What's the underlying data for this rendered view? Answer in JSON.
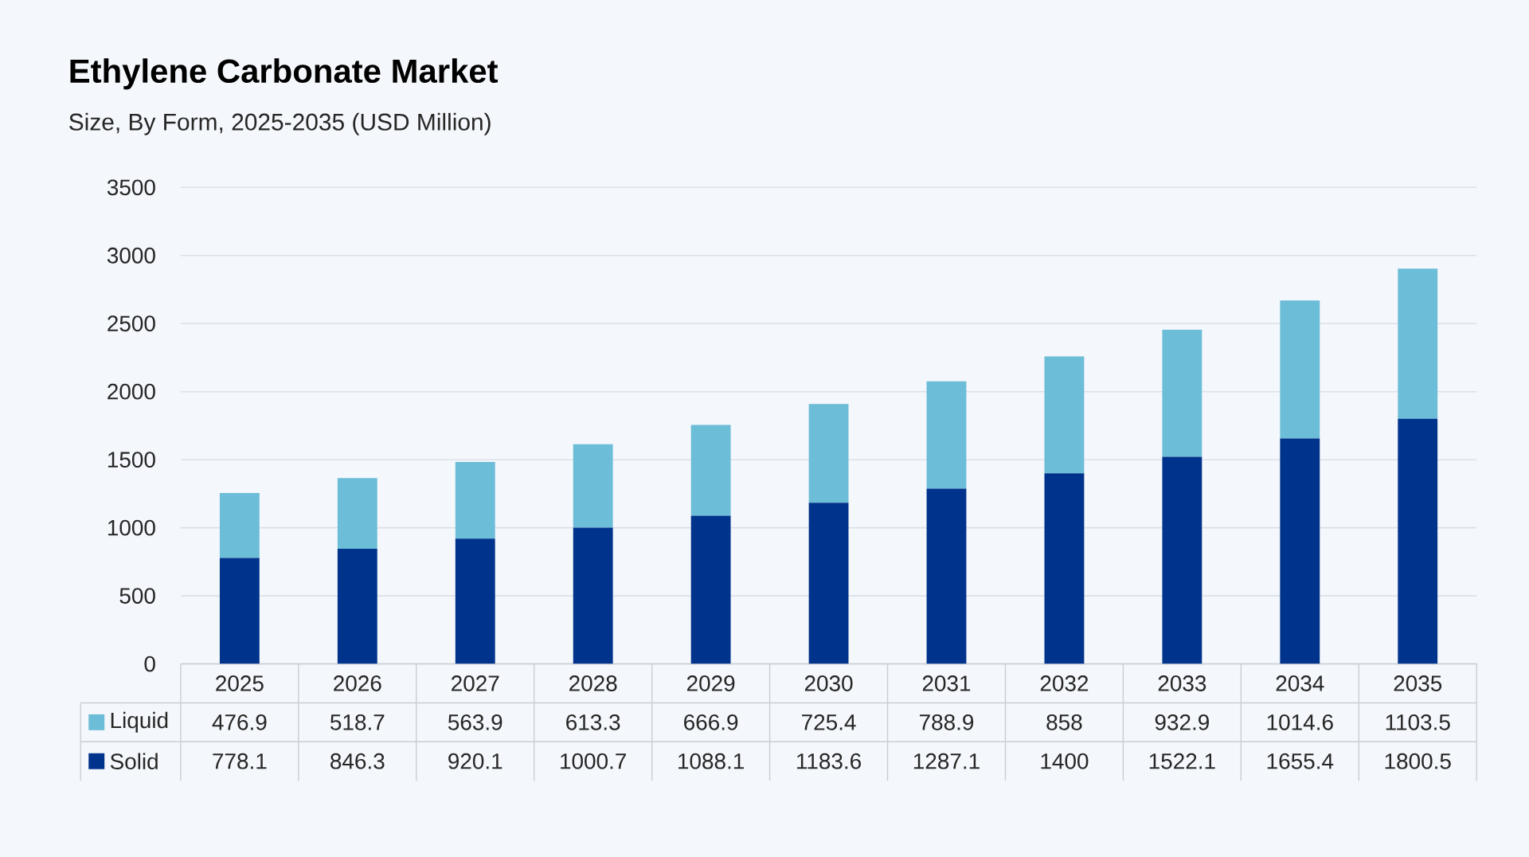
{
  "chart_data": {
    "type": "bar",
    "title": "Ethylene Carbonate Market",
    "subtitle": "Size, By Form, 2025-2035 (USD Million)",
    "categories": [
      "2025",
      "2026",
      "2027",
      "2028",
      "2029",
      "2030",
      "2031",
      "2032",
      "2033",
      "2034",
      "2035"
    ],
    "series": [
      {
        "name": "Solid",
        "color": "#00348c",
        "values": [
          778.1,
          846.3,
          920.1,
          1000.7,
          1088.1,
          1183.6,
          1287.1,
          1400,
          1522.1,
          1655.4,
          1800.5
        ]
      },
      {
        "name": "Liquid",
        "color": "#6cbdd8",
        "values": [
          476.9,
          518.7,
          563.9,
          613.3,
          666.9,
          725.4,
          788.9,
          858,
          932.9,
          1014.6,
          1103.5
        ]
      }
    ],
    "stacked": true,
    "ylim": [
      0,
      3500
    ],
    "yticks": [
      0,
      500,
      1000,
      1500,
      2000,
      2500,
      3000,
      3500
    ],
    "grid": "y",
    "legend": "bottom",
    "data_labels": true
  }
}
